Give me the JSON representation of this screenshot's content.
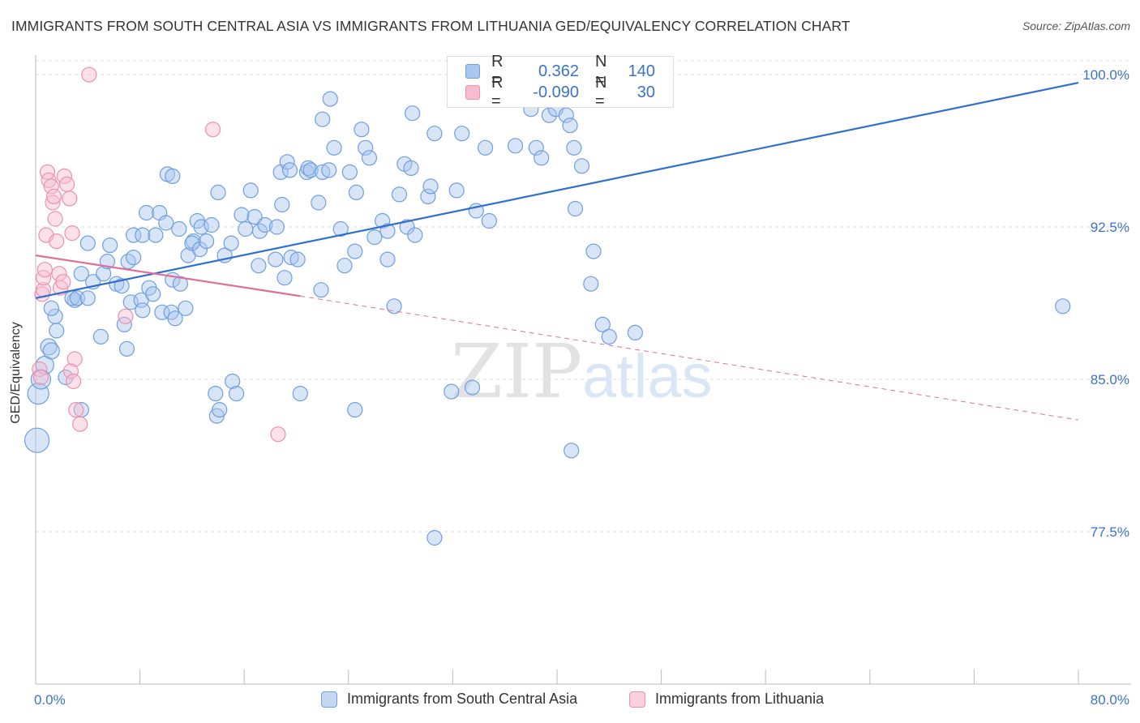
{
  "title": "IMMIGRANTS FROM SOUTH CENTRAL ASIA VS IMMIGRANTS FROM LITHUANIA GED/EQUIVALENCY CORRELATION CHART",
  "source": "Source: ZipAtlas.com",
  "watermark": {
    "zip": "ZIP",
    "atlas": "atlas"
  },
  "legend_top": {
    "rows": [
      {
        "r_label": "R =",
        "r_value": "0.362",
        "n_label": "N =",
        "n_value": "140"
      },
      {
        "r_label": "R =",
        "r_value": "-0.090",
        "n_label": "N =",
        "n_value": "30"
      }
    ]
  },
  "legend_bottom": {
    "items": [
      "Immigrants from South Central Asia",
      "Immigrants from Lithuania"
    ]
  },
  "colors": {
    "blue_fill": "#a8c6ee",
    "blue_stroke": "#6f9fe0",
    "blue_line": "#2f6fd0",
    "pink_fill": "#f7bcd0",
    "pink_stroke": "#ee8fb0",
    "pink_line": "#e0709a",
    "tick_label": "#3b73c8",
    "grid": "#dddddd"
  },
  "chart_data": {
    "type": "scatter",
    "title": "IMMIGRANTS FROM SOUTH CENTRAL ASIA VS IMMIGRANTS FROM LITHUANIA GED/EQUIVALENCY CORRELATION CHART",
    "xlabel": "",
    "ylabel": "GED/Equivalency",
    "xlim": [
      0,
      80
    ],
    "ylim": [
      70.0,
      100.8
    ],
    "x_tick_labels": [
      "0.0%",
      "80.0%"
    ],
    "y_ticks": [
      77.5,
      85.0,
      92.5,
      100.0
    ],
    "y_tick_labels": [
      "77.5%",
      "85.0%",
      "92.5%",
      "100.0%"
    ],
    "grid": true,
    "legend_position": "top-center",
    "series": [
      {
        "name": "Immigrants from South Central Asia",
        "color": "#6f9fe0",
        "trend": {
          "x": [
            0,
            80
          ],
          "y": [
            89.0,
            99.6
          ],
          "dashed_to": null
        },
        "points": [
          [
            0.1,
            82.0
          ],
          [
            0.2,
            84.3
          ],
          [
            0.4,
            85.0
          ],
          [
            0.7,
            85.7
          ],
          [
            1.0,
            86.6
          ],
          [
            1.2,
            86.4
          ],
          [
            2.3,
            85.1
          ],
          [
            1.6,
            87.4
          ],
          [
            1.5,
            88.1
          ],
          [
            1.2,
            88.5
          ],
          [
            3.5,
            83.5
          ],
          [
            3.0,
            88.9
          ],
          [
            2.8,
            89.0
          ],
          [
            3.2,
            89.0
          ],
          [
            4.0,
            89.0
          ],
          [
            3.5,
            90.2
          ],
          [
            4.4,
            89.8
          ],
          [
            5.0,
            87.1
          ],
          [
            5.2,
            90.2
          ],
          [
            5.7,
            91.6
          ],
          [
            4.0,
            91.7
          ],
          [
            5.5,
            90.8
          ],
          [
            6.2,
            89.7
          ],
          [
            6.6,
            89.6
          ],
          [
            6.8,
            87.7
          ],
          [
            7.0,
            86.5
          ],
          [
            7.3,
            88.8
          ],
          [
            7.1,
            90.8
          ],
          [
            8.1,
            88.9
          ],
          [
            8.2,
            88.4
          ],
          [
            7.5,
            92.1
          ],
          [
            7.5,
            91.0
          ],
          [
            8.2,
            92.1
          ],
          [
            8.5,
            93.2
          ],
          [
            8.7,
            89.5
          ],
          [
            9.0,
            89.2
          ],
          [
            9.2,
            92.1
          ],
          [
            9.5,
            93.2
          ],
          [
            9.7,
            88.3
          ],
          [
            10.0,
            92.7
          ],
          [
            10.4,
            88.3
          ],
          [
            10.5,
            89.9
          ],
          [
            10.7,
            88.0
          ],
          [
            11.1,
            89.7
          ],
          [
            11.5,
            88.5
          ],
          [
            11.7,
            91.1
          ],
          [
            12.1,
            91.8
          ],
          [
            12.4,
            92.8
          ],
          [
            12.0,
            91.7
          ],
          [
            12.6,
            91.4
          ],
          [
            10.1,
            95.1
          ],
          [
            10.5,
            95.0
          ],
          [
            11.0,
            92.4
          ],
          [
            12.7,
            92.5
          ],
          [
            13.1,
            91.8
          ],
          [
            13.5,
            92.6
          ],
          [
            14.0,
            94.2
          ],
          [
            14.5,
            91.1
          ],
          [
            15.0,
            91.7
          ],
          [
            13.8,
            84.3
          ],
          [
            13.9,
            83.2
          ],
          [
            14.1,
            83.5
          ],
          [
            15.1,
            84.9
          ],
          [
            15.4,
            84.3
          ],
          [
            15.8,
            93.1
          ],
          [
            16.1,
            92.4
          ],
          [
            16.5,
            94.3
          ],
          [
            16.8,
            93.0
          ],
          [
            17.2,
            92.3
          ],
          [
            17.6,
            92.6
          ],
          [
            17.1,
            90.6
          ],
          [
            18.4,
            90.9
          ],
          [
            18.5,
            92.5
          ],
          [
            18.9,
            93.6
          ],
          [
            18.8,
            95.2
          ],
          [
            19.3,
            95.7
          ],
          [
            19.5,
            95.3
          ],
          [
            19.1,
            90.0
          ],
          [
            19.6,
            91.0
          ],
          [
            20.1,
            90.9
          ],
          [
            20.8,
            95.2
          ],
          [
            20.9,
            95.4
          ],
          [
            21.7,
            93.7
          ],
          [
            21.1,
            95.3
          ],
          [
            21.9,
            89.4
          ],
          [
            20.3,
            84.3
          ],
          [
            22.0,
            95.2
          ],
          [
            22.5,
            95.3
          ],
          [
            22.9,
            96.4
          ],
          [
            22.6,
            98.8
          ],
          [
            22.0,
            97.8
          ],
          [
            23.4,
            92.4
          ],
          [
            24.5,
            91.3
          ],
          [
            23.7,
            90.6
          ],
          [
            24.1,
            95.2
          ],
          [
            24.6,
            94.2
          ],
          [
            25.0,
            97.3
          ],
          [
            25.3,
            96.4
          ],
          [
            25.6,
            95.9
          ],
          [
            24.5,
            83.5
          ],
          [
            26.0,
            92.0
          ],
          [
            26.6,
            92.8
          ],
          [
            27.0,
            92.3
          ],
          [
            27.0,
            90.9
          ],
          [
            27.5,
            88.6
          ],
          [
            27.9,
            94.1
          ],
          [
            28.3,
            95.6
          ],
          [
            28.5,
            92.5
          ],
          [
            28.8,
            95.4
          ],
          [
            28.9,
            98.1
          ],
          [
            29.1,
            92.1
          ],
          [
            30.1,
            94.0
          ],
          [
            30.3,
            94.5
          ],
          [
            30.6,
            97.1
          ],
          [
            32.3,
            94.3
          ],
          [
            32.7,
            97.1
          ],
          [
            30.6,
            77.2
          ],
          [
            31.9,
            84.4
          ],
          [
            33.8,
            93.3
          ],
          [
            33.5,
            84.6
          ],
          [
            34.3,
            100.1
          ],
          [
            34.5,
            96.4
          ],
          [
            34.8,
            92.8
          ],
          [
            35.8,
            98.9
          ],
          [
            36.8,
            96.5
          ],
          [
            38.0,
            98.3
          ],
          [
            38.4,
            96.4
          ],
          [
            38.8,
            95.9
          ],
          [
            39.4,
            98.0
          ],
          [
            39.9,
            98.3
          ],
          [
            40.7,
            98.0
          ],
          [
            41.0,
            97.5
          ],
          [
            41.3,
            96.4
          ],
          [
            41.9,
            95.5
          ],
          [
            41.4,
            93.4
          ],
          [
            41.1,
            81.5
          ],
          [
            42.6,
            89.7
          ],
          [
            42.8,
            91.3
          ],
          [
            43.5,
            87.7
          ],
          [
            44.0,
            87.1
          ],
          [
            46.0,
            87.3
          ],
          [
            78.8,
            88.6
          ]
        ]
      },
      {
        "name": "Immigrants from Lithuania",
        "color": "#ee8fb0",
        "trend": {
          "x": [
            0,
            20.3
          ],
          "y": [
            91.1,
            89.1
          ],
          "dashed_to": [
            80,
            83.0
          ]
        },
        "points": [
          [
            0.3,
            85.5
          ],
          [
            0.4,
            85.1
          ],
          [
            0.5,
            89.2
          ],
          [
            0.6,
            89.4
          ],
          [
            0.6,
            90.0
          ],
          [
            0.7,
            90.4
          ],
          [
            0.8,
            92.1
          ],
          [
            0.9,
            95.2
          ],
          [
            1.0,
            94.8
          ],
          [
            1.2,
            94.5
          ],
          [
            1.3,
            93.7
          ],
          [
            1.4,
            94.0
          ],
          [
            1.5,
            92.9
          ],
          [
            1.6,
            91.8
          ],
          [
            1.8,
            90.2
          ],
          [
            1.9,
            89.5
          ],
          [
            2.1,
            89.8
          ],
          [
            2.2,
            95.0
          ],
          [
            2.4,
            94.6
          ],
          [
            2.6,
            93.9
          ],
          [
            2.8,
            92.2
          ],
          [
            3.0,
            86.0
          ],
          [
            2.7,
            85.4
          ],
          [
            2.9,
            84.9
          ],
          [
            3.1,
            83.5
          ],
          [
            3.4,
            82.8
          ],
          [
            6.9,
            88.1
          ],
          [
            4.1,
            100.0
          ],
          [
            13.6,
            97.3
          ],
          [
            18.6,
            82.3
          ]
        ]
      }
    ]
  }
}
